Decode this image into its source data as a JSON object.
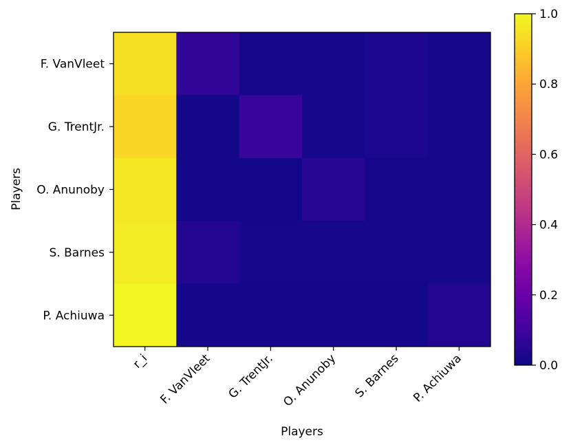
{
  "chart_data": {
    "type": "heatmap",
    "title": "",
    "xlabel": "Players",
    "ylabel": "Players",
    "x_categories": [
      "r_i",
      "F. VanVleet",
      "G. TrentJr.",
      "O. Anunoby",
      "S. Barnes",
      "P. Achiuwa"
    ],
    "y_categories": [
      "F. VanVleet",
      "G. TrentJr.",
      "O. Anunoby",
      "S. Barnes",
      "P. Achiuwa"
    ],
    "values": [
      [
        0.94,
        0.07,
        0.02,
        0.02,
        0.03,
        0.02
      ],
      [
        0.92,
        0.01,
        0.08,
        0.02,
        0.03,
        0.02
      ],
      [
        0.96,
        0.01,
        0.01,
        0.05,
        0.02,
        0.02
      ],
      [
        0.97,
        0.04,
        0.02,
        0.02,
        0.02,
        0.02
      ],
      [
        0.99,
        0.01,
        0.01,
        0.01,
        0.01,
        0.04
      ]
    ],
    "colormap": "plasma",
    "vmin": 0.0,
    "vmax": 1.0,
    "colorbar_ticks": [
      "0.0",
      "0.2",
      "0.4",
      "0.6",
      "0.8",
      "1.0"
    ],
    "grid": false
  }
}
